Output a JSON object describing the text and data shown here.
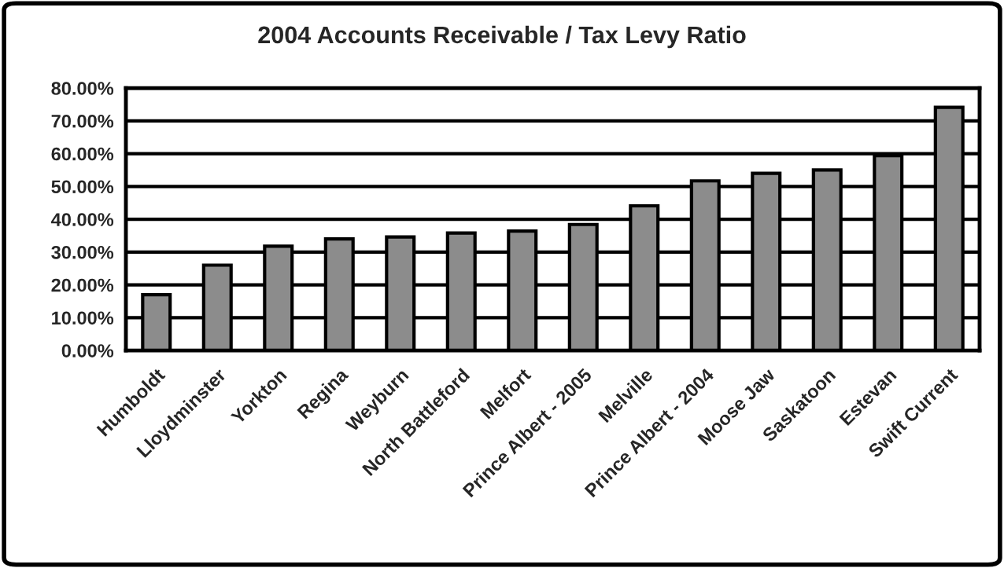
{
  "chart_data": {
    "type": "bar",
    "title": "2004 Accounts Receivable / Tax Levy Ratio",
    "categories": [
      "Humboldt",
      "Lloydminster",
      "Yorkton",
      "Regina",
      "Weyburn",
      "North Battleford",
      "Melfort",
      "Prince Albert - 2005",
      "Melville",
      "Prince Albert - 2004",
      "Moose Jaw",
      "Saskatoon",
      "Estevan",
      "Swift Current"
    ],
    "values": [
      17.0,
      26.0,
      31.8,
      34.0,
      34.6,
      35.8,
      36.4,
      38.4,
      44.1,
      51.7,
      54.0,
      55.0,
      59.4,
      74.1
    ],
    "color": "#8c8c8c",
    "ylim": [
      0,
      80
    ],
    "yticks": [
      {
        "value": 0,
        "label": "0.00%"
      },
      {
        "value": 10,
        "label": "10.00%"
      },
      {
        "value": 20,
        "label": "20.00%"
      },
      {
        "value": 30,
        "label": "30.00%"
      },
      {
        "value": 40,
        "label": "40.00%"
      },
      {
        "value": 50,
        "label": "50.00%"
      },
      {
        "value": 60,
        "label": "60.00%"
      },
      {
        "value": 70,
        "label": "70.00%"
      },
      {
        "value": 80,
        "label": "80.00%"
      }
    ],
    "grid": "y",
    "legend": false
  }
}
